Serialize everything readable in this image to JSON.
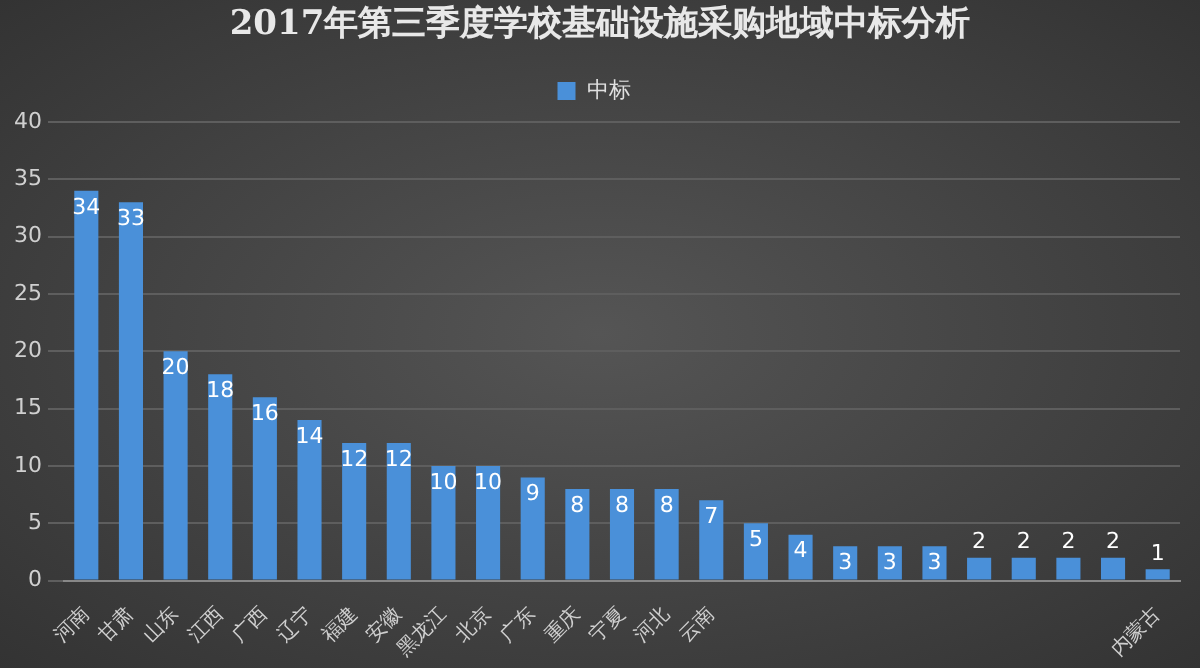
{
  "chart_data": {
    "type": "bar",
    "title": "2017年第三季度学校基础设施采购地域中标分析",
    "categories": [
      "河南",
      "甘肃",
      "山东",
      "江西",
      "广西",
      "辽宁",
      "福建",
      "安徽",
      "黑龙江",
      "北京",
      "广东",
      "重庆",
      "宁夏",
      "河北",
      "云南",
      null,
      null,
      null,
      null,
      null,
      null,
      null,
      null,
      null,
      "内蒙古"
    ],
    "series": [
      {
        "name": "中标",
        "color": "#4a90d9",
        "values": [
          34,
          33,
          20,
          18,
          16,
          14,
          12,
          12,
          10,
          10,
          9,
          8,
          8,
          8,
          7,
          5,
          4,
          3,
          3,
          3,
          2,
          2,
          2,
          2,
          1
        ]
      }
    ],
    "ylim": [
      0,
      40
    ],
    "yticks": [
      0,
      5,
      10,
      15,
      20,
      25,
      30,
      35,
      40
    ],
    "grid": "y",
    "legend": "top",
    "data_labels": true
  }
}
